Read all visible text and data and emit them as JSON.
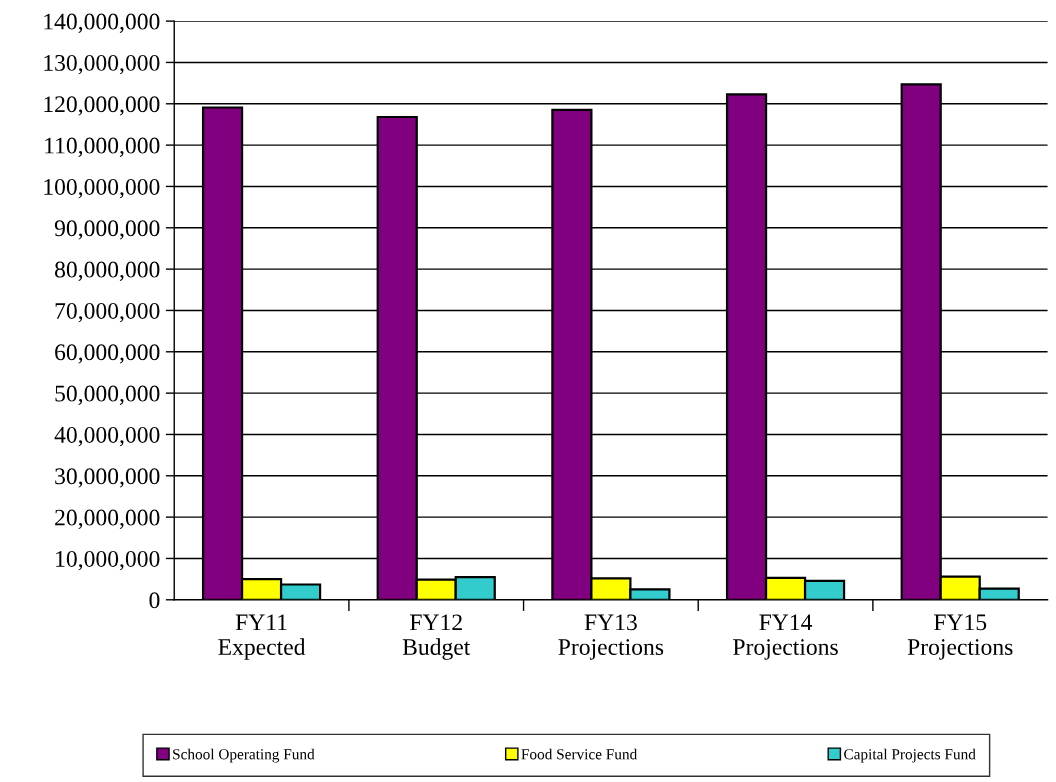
{
  "chart_data": {
    "type": "bar",
    "categories": [
      "FY11\nExpected",
      "FY12\nBudget",
      "FY13\nProjections",
      "FY14\nProjections",
      "FY15\nProjections"
    ],
    "series": [
      {
        "name": "School Operating Fund",
        "color": "#800080",
        "values": [
          119100000,
          116800000,
          118500000,
          122300000,
          124700000
        ]
      },
      {
        "name": "Food Service Fund",
        "color": "#ffff00",
        "values": [
          5000000,
          4900000,
          5200000,
          5300000,
          5600000
        ]
      },
      {
        "name": "Capital Projects Fund",
        "color": "#33cccc",
        "values": [
          3700000,
          5500000,
          2500000,
          4600000,
          2700000
        ]
      }
    ],
    "ylim": [
      0,
      140000000
    ],
    "yticks": [
      {
        "value": 0,
        "label": "0"
      },
      {
        "value": 10000000,
        "label": "10,000,000"
      },
      {
        "value": 20000000,
        "label": "20,000,000"
      },
      {
        "value": 30000000,
        "label": "30,000,000"
      },
      {
        "value": 40000000,
        "label": "40,000,000"
      },
      {
        "value": 50000000,
        "label": "50,000,000"
      },
      {
        "value": 60000000,
        "label": "60,000,000"
      },
      {
        "value": 70000000,
        "label": "70,000,000"
      },
      {
        "value": 80000000,
        "label": "80,000,000"
      },
      {
        "value": 90000000,
        "label": "90,000,000"
      },
      {
        "value": 100000000,
        "label": "100,000,000"
      },
      {
        "value": 110000000,
        "label": "110,000,000"
      },
      {
        "value": 120000000,
        "label": "120,000,000"
      },
      {
        "value": 130000000,
        "label": "130,000,000"
      },
      {
        "value": 140000000,
        "label": "140,000,000"
      }
    ],
    "grid": "y",
    "legend": "bottom"
  }
}
